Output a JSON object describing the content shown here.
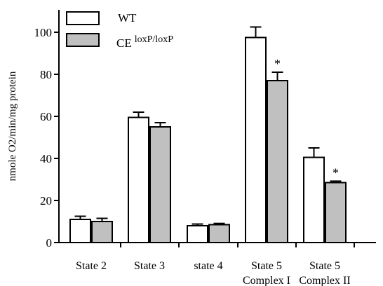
{
  "chart_data": {
    "type": "bar",
    "ylabel": "nmole O2/min/mg protein",
    "xlabel": "",
    "ylim": [
      0,
      110
    ],
    "yticks": [
      0,
      20,
      40,
      60,
      80,
      100
    ],
    "grid": false,
    "legend_position": "top-left",
    "categories": [
      [
        "State 2"
      ],
      [
        "State 3"
      ],
      [
        "state 4"
      ],
      [
        "State 5",
        "Complex I"
      ],
      [
        "State 5",
        "Complex II"
      ]
    ],
    "series": [
      {
        "name": "WT",
        "color": "#ffffff",
        "values": [
          11,
          59.5,
          8,
          97.5,
          40.5
        ],
        "errors": [
          1.5,
          2.5,
          0.8,
          5,
          4.5
        ]
      },
      {
        "name": "CE",
        "name_superscript": "loxP/loxP",
        "color": "#c0c0c0",
        "values": [
          10,
          55,
          8.5,
          77,
          28.5
        ],
        "errors": [
          1.5,
          2,
          0.6,
          4,
          0.7
        ]
      }
    ],
    "annotations": [
      {
        "category_index": 3,
        "series_index": 1,
        "text": "*"
      },
      {
        "category_index": 4,
        "series_index": 1,
        "text": "*"
      }
    ]
  }
}
